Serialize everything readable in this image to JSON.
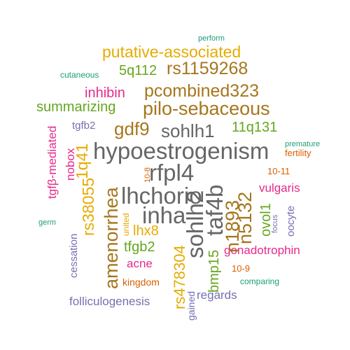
{
  "colors": {
    "green": "#1b9e77",
    "orange": "#d95f02",
    "purple": "#7570b3",
    "magenta": "#e7298a",
    "lime": "#66a61e",
    "gold": "#e6ab02",
    "brown": "#a6761d",
    "gray": "#666666"
  },
  "words": {
    "hypoestrogenism": "hypoestrogenism",
    "lhchorio": "lhchorio",
    "rfpl4": "rfpl4",
    "inha": "inha",
    "sohlh1": "sohlh1",
    "sohlh2": "sohlh2",
    "taf4b": "taf4b",
    "amenorrhea": "amenorrhea",
    "n5132": "n5132",
    "n1893": "n1893",
    "pilo_sebaceous": "pilo-sebaceous",
    "pcombined323": "pcombined323",
    "rs1159268": "rs1159268",
    "putative_associated": "putative-associated",
    "gdf9": "gdf9",
    "summarizing": "summarizing",
    "inhibin": "inhibin",
    "fivq112": "5q112",
    "elevenq131": "11q131",
    "rs38055": "rs38055",
    "oneq41": "1q41",
    "rs478304": "rs478304",
    "lhx8": "lhx8",
    "tfgb2": "tfgb2",
    "acne": "acne",
    "gonadotrophin": "gonadotrophin",
    "vulgaris": "vulgaris",
    "bmp15": "bmp15",
    "ovol1": "ovol1",
    "regards": "regards",
    "folliculogenesis": "folliculogenesis",
    "kingdom": "kingdom",
    "cessation": "cessation",
    "nobox": "nobox",
    "tgfb_mediated": "tgfβ-mediated",
    "tgfb2": "tgfb2",
    "oocyte": "oocyte",
    "fertility": "fertility",
    "premature": "premature",
    "ten_11": "10-11",
    "ten_9": "10-9",
    "ten_8": "10-8",
    "united": "united",
    "focus": "focus",
    "gained": "gained",
    "comparing": "comparing",
    "germ": "germ",
    "cutaneous": "cutaneous",
    "perform": "perform"
  }
}
